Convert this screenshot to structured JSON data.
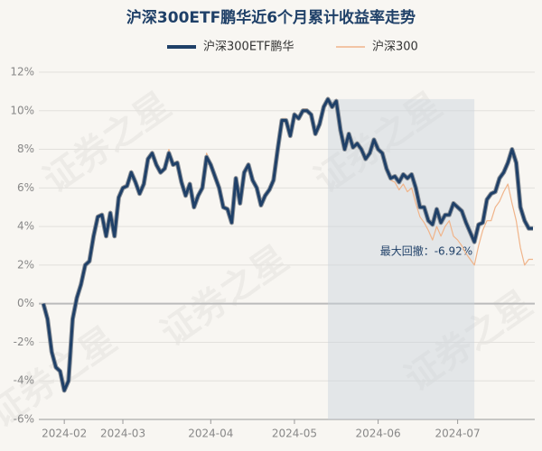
{
  "chart_data": {
    "type": "line",
    "title": "沪深300ETF鹏华近6个月累计收益率走势",
    "watermark": "证券之星",
    "annotation": "最大回撤：-6.92%",
    "categories": [
      null,
      null,
      null,
      null,
      null,
      "2024-02",
      null,
      null,
      null,
      null,
      null,
      null,
      null,
      null,
      null,
      null,
      null,
      null,
      null,
      "2024-03",
      null,
      null,
      null,
      null,
      null,
      null,
      null,
      null,
      null,
      null,
      null,
      null,
      null,
      null,
      null,
      null,
      null,
      null,
      null,
      null,
      "2024-04",
      null,
      null,
      null,
      null,
      null,
      null,
      null,
      null,
      null,
      null,
      null,
      null,
      null,
      null,
      null,
      null,
      null,
      null,
      null,
      "2024-05",
      null,
      null,
      null,
      null,
      null,
      null,
      null,
      null,
      null,
      null,
      null,
      null,
      null,
      null,
      null,
      null,
      null,
      null,
      null,
      "2024-06",
      null,
      null,
      null,
      null,
      null,
      null,
      null,
      null,
      null,
      null,
      null,
      null,
      null,
      null,
      null,
      null,
      null,
      null,
      "2024-07",
      null,
      null,
      null,
      null,
      null,
      null,
      null,
      null,
      null,
      null,
      null,
      null,
      null,
      null,
      null,
      null,
      null,
      null
    ],
    "series": [
      {
        "name": "沪深300ETF鹏华",
        "color": "#1f4068",
        "values": [
          0,
          -0.8,
          -2.5,
          -3.3,
          -3.5,
          -4.5,
          -4,
          -0.8,
          0.3,
          1,
          2,
          2.2,
          3.5,
          4.5,
          4.6,
          3.5,
          4.7,
          3.5,
          5.5,
          6,
          6.1,
          6.8,
          6.3,
          5.7,
          6.2,
          7.5,
          7.8,
          7.2,
          6.8,
          7,
          7.8,
          7.2,
          7.3,
          6.3,
          5.6,
          6.2,
          5,
          5.6,
          6,
          7.6,
          7.2,
          6.6,
          6,
          5,
          4.9,
          4.2,
          6.5,
          5.2,
          6.8,
          7.2,
          6.4,
          6,
          5.1,
          5.6,
          5.9,
          6.4,
          8,
          9.5,
          9.5,
          8.7,
          9.8,
          9.6,
          10,
          10,
          9.8,
          8.8,
          9.3,
          10.2,
          10.6,
          10.2,
          10.5,
          9,
          8,
          8.8,
          8.1,
          8.3,
          8,
          7.5,
          7.8,
          8.5,
          8,
          7.8,
          7,
          6.5,
          6.6,
          6.3,
          6.7,
          6.5,
          6.7,
          6,
          5,
          5,
          4.3,
          4.1,
          4.9,
          4.2,
          4.6,
          4.6,
          5.2,
          5,
          4.8,
          4.2,
          3.7,
          3.2,
          4.1,
          4.2,
          5.4,
          5.7,
          5.8,
          6.5,
          6.8,
          7.3,
          8,
          7.3,
          5,
          4.3,
          3.9,
          3.9
        ]
      },
      {
        "name": "沪深300",
        "color": "#f0b48a",
        "values": [
          0,
          -0.7,
          -2.4,
          -3.2,
          -3.4,
          -4.4,
          -3.9,
          -0.7,
          0.4,
          1.1,
          2.1,
          2.3,
          3.6,
          4.6,
          4.7,
          3.6,
          4.8,
          3.6,
          5.6,
          6.1,
          6.2,
          6.9,
          6.4,
          5.8,
          6.3,
          7.6,
          7.9,
          7.3,
          6.9,
          7.1,
          8,
          7.3,
          7.4,
          6.4,
          5.7,
          6.3,
          5.1,
          5.7,
          6.1,
          7.8,
          7.3,
          6.7,
          6.1,
          5.1,
          5,
          4.3,
          6.6,
          5.3,
          6.9,
          7.3,
          6.5,
          6.1,
          5.2,
          5.7,
          6,
          6.5,
          8.1,
          9.6,
          9.6,
          8.8,
          9.9,
          9.7,
          10.1,
          10.1,
          9.9,
          8.9,
          9.4,
          10.3,
          10.7,
          10.3,
          10.6,
          9.1,
          8.1,
          8.9,
          8.2,
          8.4,
          8.1,
          7.6,
          7.9,
          8.4,
          7.9,
          7.7,
          6.9,
          6.4,
          6.3,
          5.9,
          6.2,
          5.8,
          6,
          5.2,
          4.5,
          4.2,
          3.8,
          3.3,
          4,
          3.5,
          4,
          4.3,
          3.5,
          3.3,
          3,
          2.6,
          2.3,
          2,
          3,
          3.8,
          4.3,
          4.3,
          5,
          5.3,
          5.8,
          6.2,
          5.2,
          4.3,
          2.9,
          2,
          2.3,
          2.3
        ]
      }
    ],
    "ylim": [
      -6,
      12
    ],
    "yticks": [
      {
        "value": -6,
        "label": "-6%"
      },
      {
        "value": -4,
        "label": "-4%"
      },
      {
        "value": -2,
        "label": "-2%"
      },
      {
        "value": 0,
        "label": "0%"
      },
      {
        "value": 2,
        "label": "2%"
      },
      {
        "value": 4,
        "label": "4%"
      },
      {
        "value": 6,
        "label": "6%"
      },
      {
        "value": 8,
        "label": "8%"
      },
      {
        "value": 10,
        "label": "10%"
      },
      {
        "value": 12,
        "label": "12%"
      }
    ],
    "grid": true
  }
}
